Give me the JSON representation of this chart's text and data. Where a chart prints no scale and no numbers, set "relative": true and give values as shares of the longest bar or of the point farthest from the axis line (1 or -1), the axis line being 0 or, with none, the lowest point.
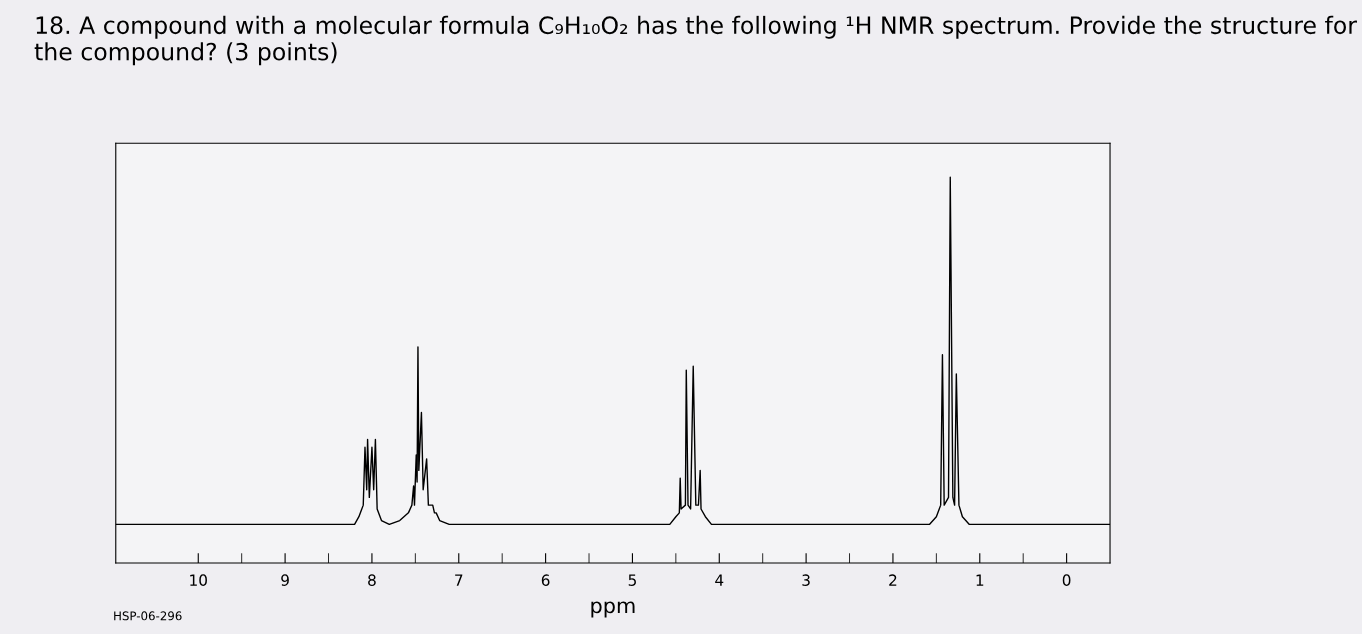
{
  "chart_data": {
    "type": "line",
    "title": "18. A compound with a molecular formula C₉H₁₀O₂ has the following ¹H NMR spectrum. Provide the structure for the compound? (3 points)",
    "xlabel": "ppm",
    "annotations": [
      "HSP-06-296"
    ],
    "relative": true,
    "xlim": [
      10.95,
      -0.5
    ],
    "xticks": [
      10,
      {
        "value": 9.5,
        "label": null
      },
      9,
      {
        "value": 8.5,
        "label": null
      },
      8,
      {
        "value": 7.5,
        "label": null
      },
      7,
      {
        "value": 6.5,
        "label": null
      },
      6,
      {
        "value": 5.5,
        "label": null
      },
      5,
      {
        "value": 4.5,
        "label": null
      },
      4,
      {
        "value": 3.5,
        "label": null
      },
      3,
      {
        "value": 2.5,
        "label": null
      },
      2,
      {
        "value": 1.5,
        "label": null
      },
      1,
      {
        "value": 0.5,
        "label": null
      },
      0
    ],
    "series": [
      {
        "color": "#000000",
        "x": [
          10.95,
          8.2,
          8.15,
          8.1,
          8.08,
          8.06,
          8.05,
          8.03,
          8.0,
          7.98,
          7.96,
          7.94,
          7.89,
          7.8,
          7.68,
          7.58,
          7.54,
          7.52,
          7.51,
          7.49,
          7.48,
          7.47,
          7.46,
          7.43,
          7.41,
          7.37,
          7.35,
          7.3,
          7.28,
          7.26,
          7.22,
          7.11,
          4.57,
          4.5,
          4.46,
          4.45,
          4.44,
          4.39,
          4.38,
          4.36,
          4.33,
          4.3,
          4.27,
          4.24,
          4.22,
          4.21,
          4.16,
          4.09,
          1.58,
          1.5,
          1.45,
          1.43,
          1.41,
          1.36,
          1.34,
          1.31,
          1.29,
          1.27,
          1.24,
          1.2,
          1.12,
          -0.5
        ],
        "values": [
          0.1,
          0.1,
          0.12,
          0.15,
          0.3,
          0.19,
          0.32,
          0.17,
          0.3,
          0.19,
          0.32,
          0.14,
          0.11,
          0.1,
          0.11,
          0.13,
          0.15,
          0.2,
          0.15,
          0.28,
          0.21,
          0.56,
          0.24,
          0.39,
          0.19,
          0.27,
          0.15,
          0.15,
          0.13,
          0.13,
          0.11,
          0.1,
          0.1,
          0.12,
          0.13,
          0.22,
          0.14,
          0.15,
          0.5,
          0.15,
          0.14,
          0.51,
          0.15,
          0.15,
          0.24,
          0.14,
          0.12,
          0.1,
          0.1,
          0.12,
          0.15,
          0.54,
          0.15,
          0.17,
          1.0,
          0.17,
          0.15,
          0.49,
          0.15,
          0.12,
          0.1,
          0.1
        ]
      }
    ]
  }
}
